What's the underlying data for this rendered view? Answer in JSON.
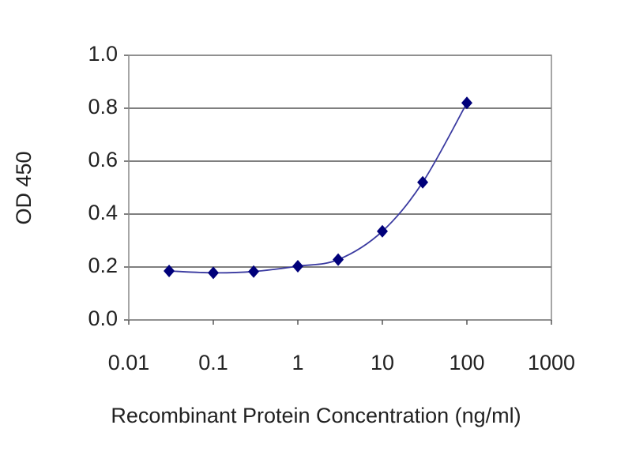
{
  "chart_data": {
    "type": "line",
    "xlabel": "Recombinant Protein Concentration (ng/ml)",
    "ylabel": "OD 450",
    "x": [
      0.03,
      0.1,
      0.3,
      1,
      3,
      10,
      30,
      100
    ],
    "values": [
      0.185,
      0.178,
      0.183,
      0.203,
      0.228,
      0.335,
      0.52,
      0.82
    ],
    "color": "#00007a",
    "line_color": "#3a3aa0",
    "xscale": "log",
    "xlim": [
      0.01,
      1000
    ],
    "xticks": [
      0.01,
      0.1,
      1,
      10,
      100,
      1000
    ],
    "ylim": [
      0,
      1
    ],
    "yticks": [
      {
        "value": 0,
        "label": "0.0"
      },
      0.2,
      0.4,
      0.6,
      0.8,
      {
        "value": 1,
        "label": "1.0"
      }
    ],
    "grid": true
  }
}
